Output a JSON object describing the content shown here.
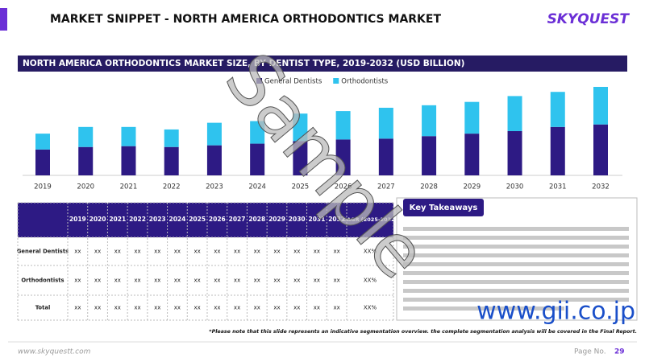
{
  "header": {
    "title": "MARKET SNIPPET - NORTH AMERICA ORTHODONTICS MARKET",
    "logo": "SKYQUEST"
  },
  "chart_data": {
    "type": "bar",
    "stacked": true,
    "title": "NORTH AMERICA ORTHODONTICS MARKET SIZE, BY DENTIST TYPE, 2019-2032 (USD BILLION)",
    "categories": [
      "2019",
      "2020",
      "2021",
      "2022",
      "2023",
      "2024",
      "2025",
      "2026",
      "2027",
      "2028",
      "2029",
      "2030",
      "2031",
      "2032"
    ],
    "series": [
      {
        "name": "General Dentists",
        "color": "#2d1a84",
        "values": [
          31,
          34,
          35,
          34,
          36,
          38,
          41,
          43,
          44,
          47,
          50,
          53,
          58,
          61
        ]
      },
      {
        "name": "Orthodontists",
        "color": "#2fc3ee",
        "values": [
          19,
          24,
          23,
          21,
          27,
          27,
          33,
          34,
          37,
          37,
          38,
          42,
          42,
          45
        ]
      }
    ],
    "legend": "top"
  },
  "table": {
    "header": [
      "2019",
      "2020",
      "2021",
      "2022",
      "2023",
      "2024",
      "2025",
      "2026",
      "2027",
      "2028",
      "2029",
      "2030",
      "2031",
      "2032",
      "CAGR (2025-2032)"
    ],
    "rows": [
      [
        "General Dentists",
        "xx",
        "xx",
        "xx",
        "xx",
        "xx",
        "xx",
        "xx",
        "xx",
        "xx",
        "xx",
        "xx",
        "xx",
        "xx",
        "xx",
        "XX%"
      ],
      [
        "Orthodontists",
        "xx",
        "xx",
        "xx",
        "xx",
        "xx",
        "xx",
        "xx",
        "xx",
        "xx",
        "xx",
        "xx",
        "xx",
        "xx",
        "xx",
        "XX%"
      ],
      [
        "Total",
        "xx",
        "xx",
        "xx",
        "xx",
        "xx",
        "xx",
        "xx",
        "xx",
        "xx",
        "xx",
        "xx",
        "xx",
        "xx",
        "xx",
        "XX%"
      ]
    ]
  },
  "takeaways": {
    "title": "Key Takeaways"
  },
  "footnote": "*Please note that this slide represents an indicative segmentation overview. the complete segmentation analysis will be covered in the Final Report.",
  "footer": {
    "website": "www.skyquestt.com",
    "page_label": "Page No.",
    "page_number": "29"
  },
  "watermark": {
    "text": "Sample",
    "site": "www.gii.co.jp"
  }
}
